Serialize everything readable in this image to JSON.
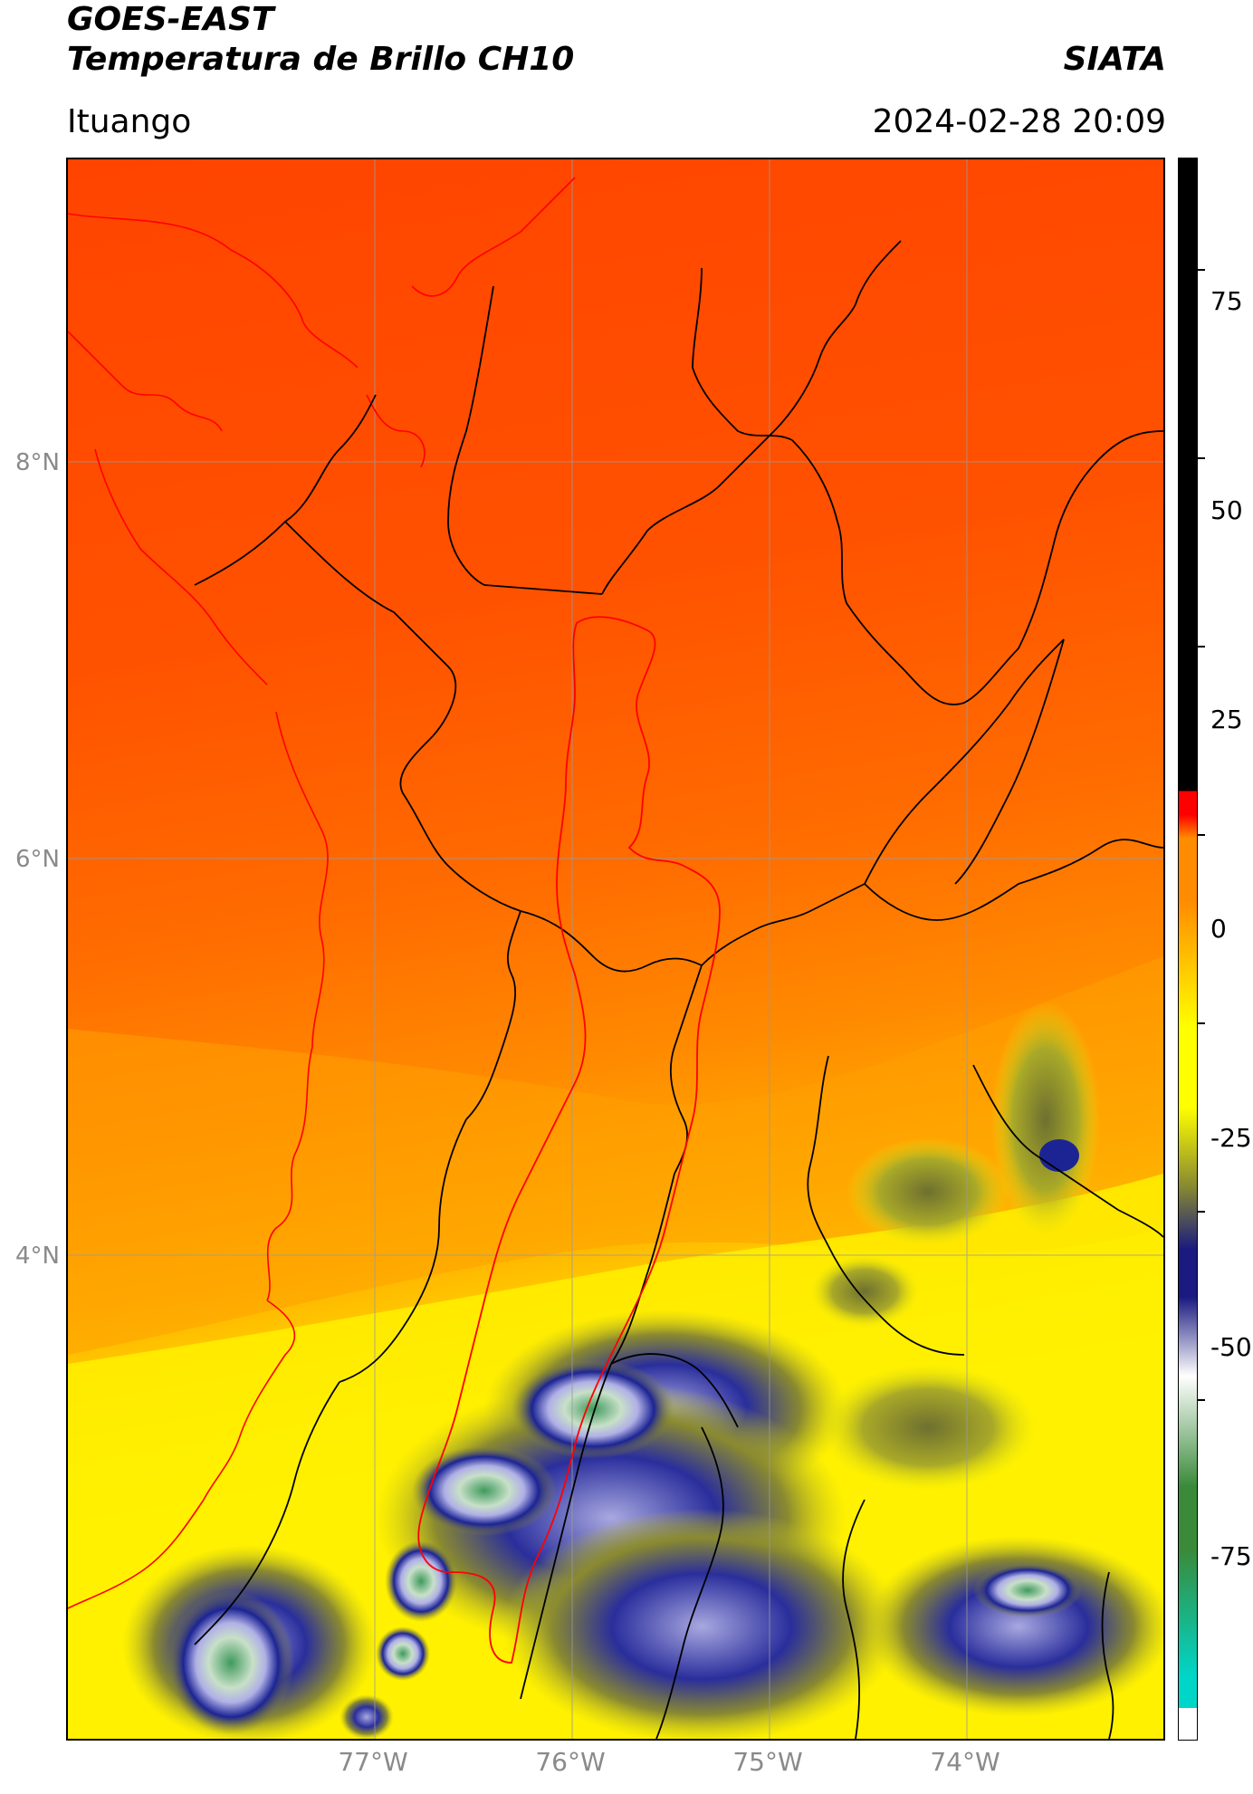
{
  "header": {
    "title_line1": "GOES-EAST",
    "title_line2": "Temperatura de Brillo CH10",
    "organization": "SIATA",
    "region": "Ituango",
    "datetime": "2024-02-28 20:09"
  },
  "map": {
    "lat_labels": [
      "8°N",
      "6°N",
      "4°N"
    ],
    "lon_labels": [
      "77°W",
      "76°W",
      "75°W",
      "74°W"
    ],
    "colors": {
      "warm_land": "#ff4a00",
      "orange": "#ff8a00",
      "yellow": "#fff200",
      "olive": "#b8b820",
      "navy": "#141c8a",
      "lavender": "#b8b8e8",
      "green": "#3c9a5a",
      "admin_boundary": "#000000",
      "basin_outline": "#ff0000",
      "coastline": "#ff0000",
      "grid": "#9a9a9a"
    }
  },
  "colorbar": {
    "tick_labels": [
      "75",
      "50",
      "25",
      "0",
      "-25",
      "-50",
      "-75"
    ],
    "colors": [
      "#000000",
      "#ff0000",
      "#ff8c00",
      "#ffff00",
      "#888a30",
      "#1a1a80",
      "#ffffff",
      "#3a8a3a",
      "#00d6c8",
      "#ffffff"
    ]
  }
}
